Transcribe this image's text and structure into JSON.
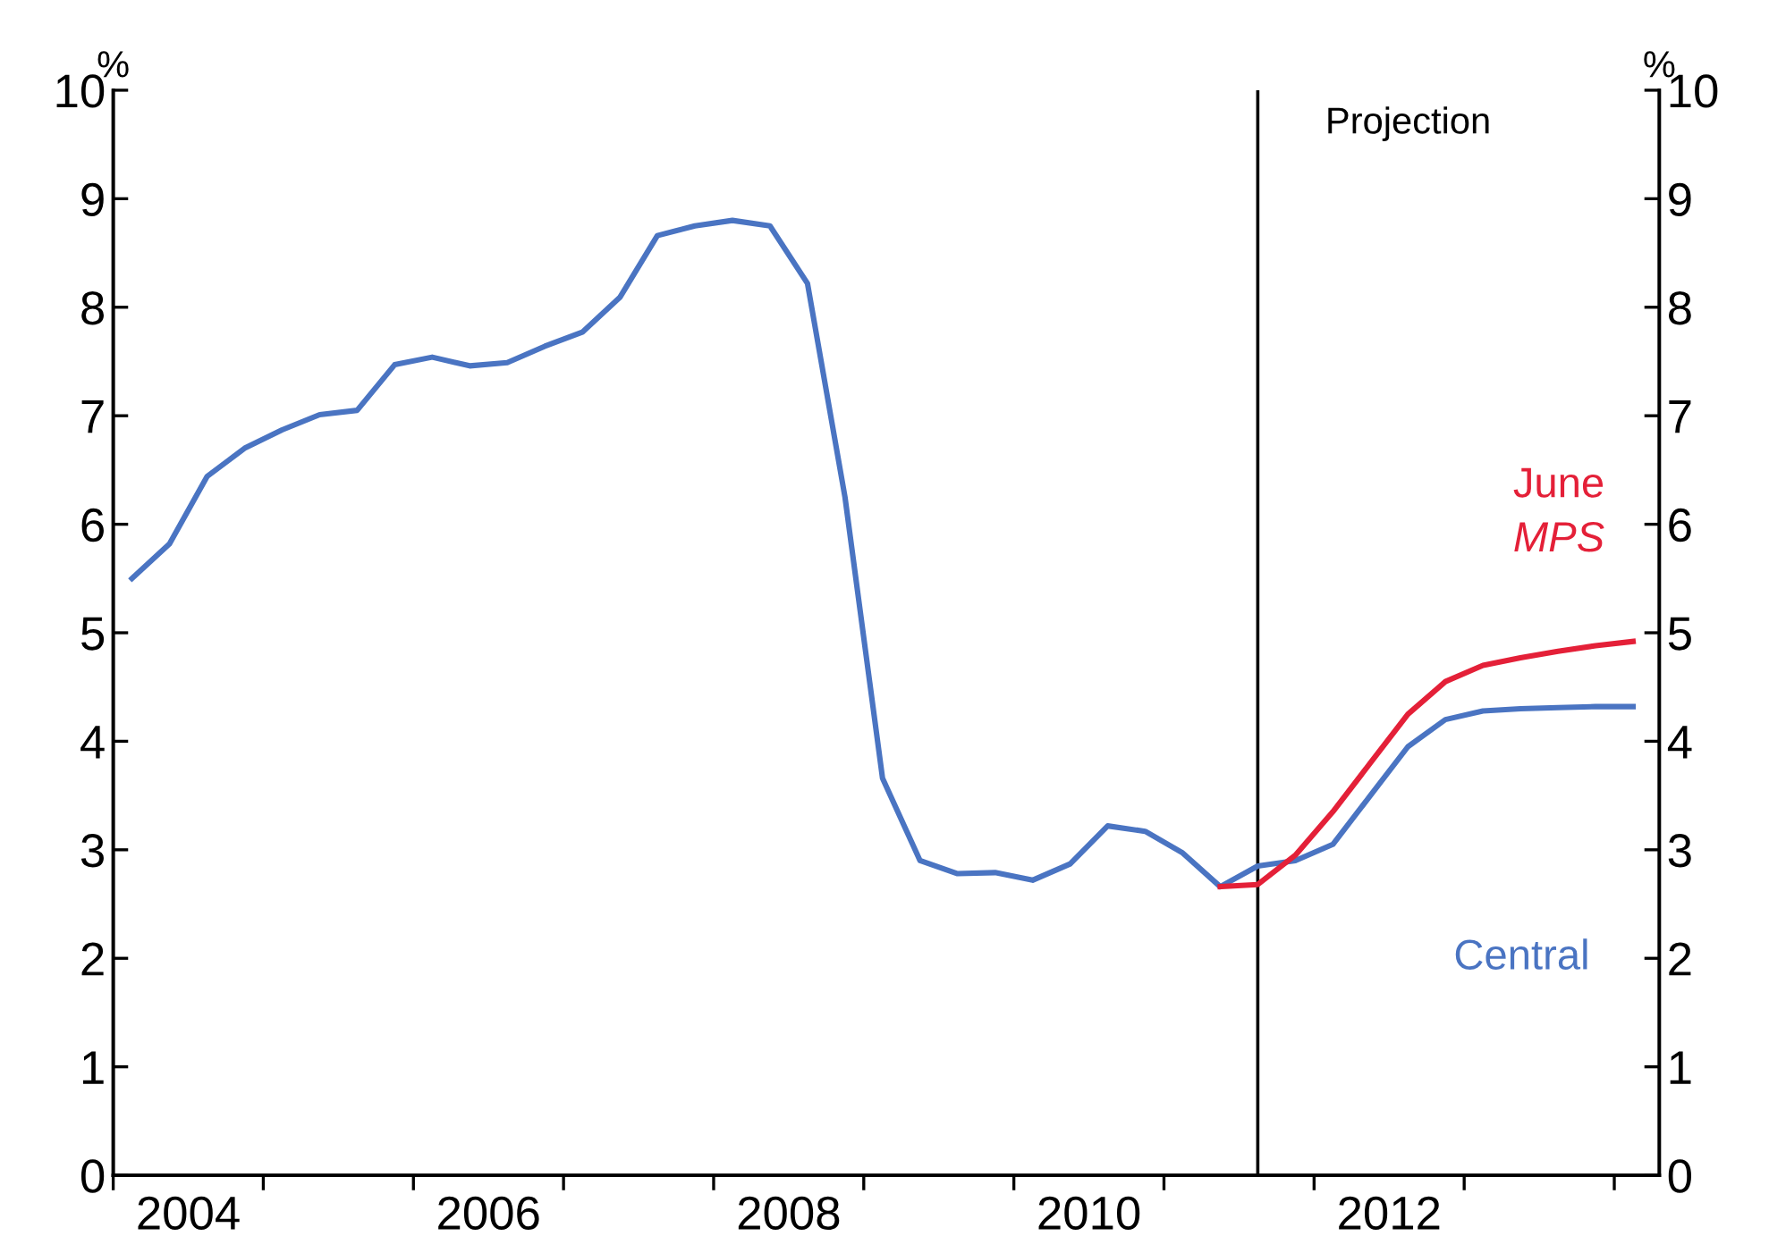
{
  "chart_data": {
    "type": "line",
    "ylabel": "%",
    "y2label": "%",
    "xlim": [
      2004,
      2014.3
    ],
    "ylim": [
      0,
      10
    ],
    "y2lim": [
      0,
      10
    ],
    "yticks": [
      0,
      1,
      2,
      3,
      4,
      5,
      6,
      7,
      8,
      9,
      10
    ],
    "y2ticks": [
      0,
      1,
      2,
      3,
      4,
      5,
      6,
      7,
      8,
      9,
      10
    ],
    "xticks": [
      {
        "value": 2004,
        "label": null
      },
      {
        "value": 2004.5,
        "label": "2004"
      },
      {
        "value": 2005,
        "label": null
      },
      {
        "value": 2006,
        "label": null
      },
      {
        "value": 2006.5,
        "label": "2006"
      },
      {
        "value": 2007,
        "label": null
      },
      {
        "value": 2008,
        "label": null
      },
      {
        "value": 2008.5,
        "label": "2008"
      },
      {
        "value": 2009,
        "label": null
      },
      {
        "value": 2010,
        "label": null
      },
      {
        "value": 2010.5,
        "label": "2010"
      },
      {
        "value": 2011,
        "label": null
      },
      {
        "value": 2012,
        "label": null
      },
      {
        "value": 2012.5,
        "label": "2012"
      },
      {
        "value": 2013,
        "label": null
      },
      {
        "value": 2014,
        "label": null
      }
    ],
    "series": [
      {
        "name": "Central",
        "color": "#4a74c2",
        "x": [
          2004.125,
          2004.375,
          2004.625,
          2004.875,
          2005.125,
          2005.375,
          2005.625,
          2005.875,
          2006.125,
          2006.375,
          2006.625,
          2006.875,
          2007.125,
          2007.375,
          2007.625,
          2007.875,
          2008.125,
          2008.375,
          2008.625,
          2008.875,
          2009.125,
          2009.375,
          2009.625,
          2009.875,
          2010.125,
          2010.375,
          2010.625,
          2010.875,
          2011.125,
          2011.375,
          2011.625,
          2011.875,
          2012.125,
          2012.375,
          2012.625,
          2012.875,
          2013.125,
          2013.375,
          2013.625,
          2013.875,
          2014.125
        ],
        "values": [
          5.5,
          5.82,
          6.44,
          6.7,
          6.87,
          7.01,
          7.05,
          7.47,
          7.54,
          7.46,
          7.49,
          7.64,
          7.77,
          8.09,
          8.66,
          8.75,
          8.8,
          8.75,
          8.22,
          6.25,
          3.66,
          2.9,
          2.78,
          2.79,
          2.72,
          2.87,
          3.22,
          3.17,
          2.97,
          2.66,
          2.85,
          2.9,
          3.05,
          3.5,
          3.95,
          4.2,
          4.28,
          4.3,
          4.31,
          4.32,
          4.32
        ]
      },
      {
        "name": "June MPS",
        "color": "#e42038",
        "x": [
          2011.375,
          2011.625,
          2011.875,
          2012.125,
          2012.375,
          2012.625,
          2012.875,
          2013.125,
          2013.375,
          2013.625,
          2013.875,
          2014.125
        ],
        "values": [
          2.66,
          2.68,
          2.95,
          3.35,
          3.8,
          4.25,
          4.55,
          4.7,
          4.77,
          4.83,
          4.88,
          4.92
        ]
      }
    ],
    "ref_lines": [
      {
        "axis": "x",
        "value": 2011.625,
        "label": "Projection",
        "color": "#000000"
      }
    ],
    "grid": false,
    "legend": false,
    "marker": "none",
    "line_style": "solid"
  }
}
